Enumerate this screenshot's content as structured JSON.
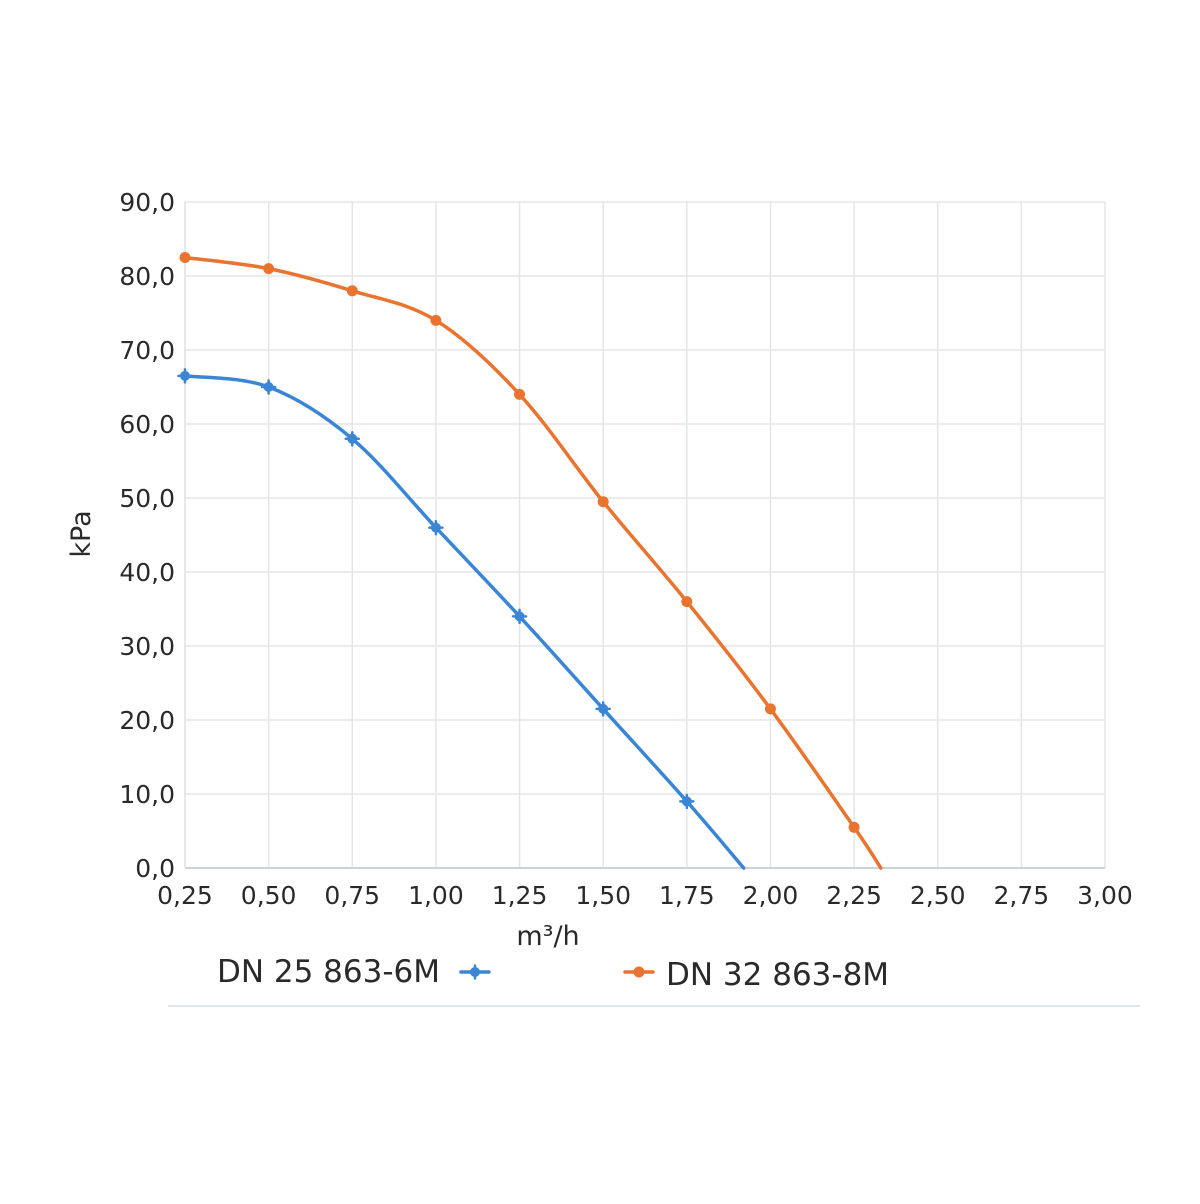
{
  "chart_data": {
    "type": "line",
    "xlabel": "m³/h",
    "ylabel": "kPa",
    "xlim": [
      0.25,
      3.0
    ],
    "ylim": [
      0,
      90
    ],
    "x_ticks": [
      "0,25",
      "0,50",
      "0,75",
      "1,00",
      "1,25",
      "1,50",
      "1,75",
      "2,00",
      "2,25",
      "2,50",
      "2,75",
      "3,00"
    ],
    "y_ticks": [
      "0,0",
      "10,0",
      "20,0",
      "30,0",
      "40,0",
      "50,0",
      "60,0",
      "70,0",
      "80,0",
      "90,0"
    ],
    "grid": true,
    "legend_position": "bottom",
    "series": [
      {
        "name": "DN 25 863-6M",
        "color": "#3a86d4",
        "marker": "star",
        "points": [
          [
            0.25,
            66.5
          ],
          [
            0.5,
            65.0
          ],
          [
            0.75,
            58.0
          ],
          [
            1.0,
            46.0
          ],
          [
            1.25,
            34.0
          ],
          [
            1.5,
            21.5
          ],
          [
            1.75,
            9.0
          ]
        ],
        "curve_end": [
          1.92,
          0
        ]
      },
      {
        "name": "DN 32 863-8M",
        "color": "#e9742f",
        "marker": "circle",
        "points": [
          [
            0.25,
            82.5
          ],
          [
            0.5,
            81.0
          ],
          [
            0.75,
            78.0
          ],
          [
            1.0,
            74.0
          ],
          [
            1.25,
            64.0
          ],
          [
            1.5,
            49.5
          ],
          [
            1.75,
            36.0
          ],
          [
            2.0,
            21.5
          ],
          [
            2.25,
            5.5
          ]
        ],
        "curve_end": [
          2.33,
          0
        ]
      }
    ]
  }
}
